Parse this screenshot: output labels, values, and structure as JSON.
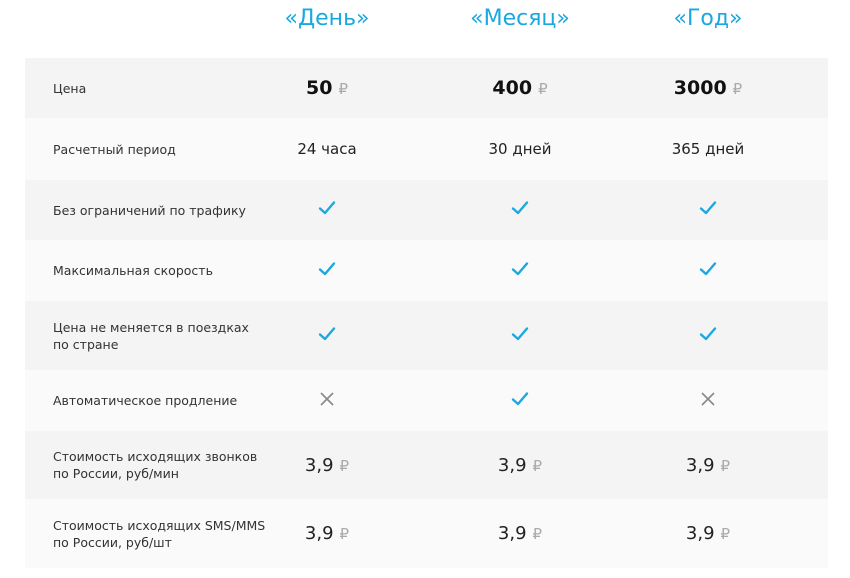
{
  "colors": {
    "accent": "#1ba8e0",
    "cross": "#888888",
    "row_dark": "#f4f4f4",
    "row_light": "#fafafa"
  },
  "plans": [
    "«День»",
    "«Месяц»",
    "«Год»"
  ],
  "currency": "₽",
  "rows": [
    {
      "label": "Цена",
      "type": "price",
      "values": [
        "50",
        "400",
        "3000"
      ]
    },
    {
      "label": "Расчетный период",
      "type": "text",
      "values": [
        "24 часа",
        "30 дней",
        "365 дней"
      ]
    },
    {
      "label": "Без ограничений по трафику",
      "type": "bool",
      "values": [
        true,
        true,
        true
      ]
    },
    {
      "label": "Максимальная скорость",
      "type": "bool",
      "values": [
        true,
        true,
        true
      ]
    },
    {
      "label": "Цена не меняется в поездках по стране",
      "type": "bool",
      "values": [
        true,
        true,
        true
      ]
    },
    {
      "label": "Автоматическое продление",
      "type": "bool",
      "values": [
        false,
        true,
        false
      ]
    },
    {
      "label": "Стоимость исходящих звонков по России, руб/мин",
      "type": "money",
      "values": [
        "3,9",
        "3,9",
        "3,9"
      ]
    },
    {
      "label": "Стоимость исходящих SMS/MMS по России, руб/шт",
      "type": "money",
      "values": [
        "3,9",
        "3,9",
        "3,9"
      ]
    }
  ]
}
